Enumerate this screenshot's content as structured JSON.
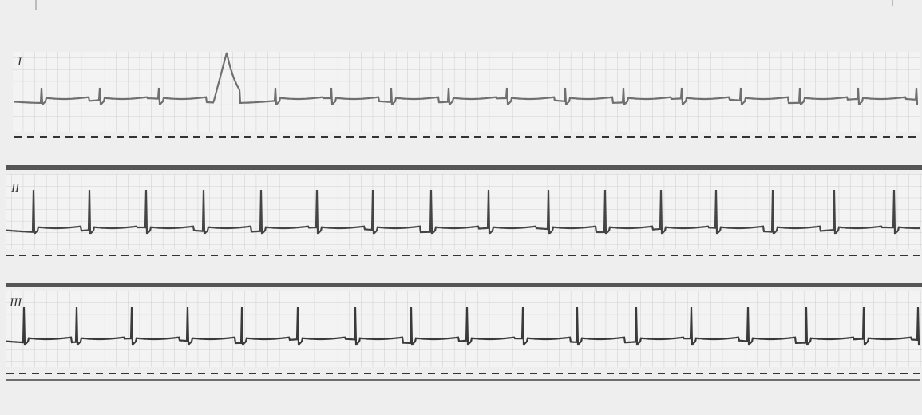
{
  "leads": [
    {
      "label": "I"
    },
    {
      "label": "II"
    },
    {
      "label": "III"
    }
  ]
}
